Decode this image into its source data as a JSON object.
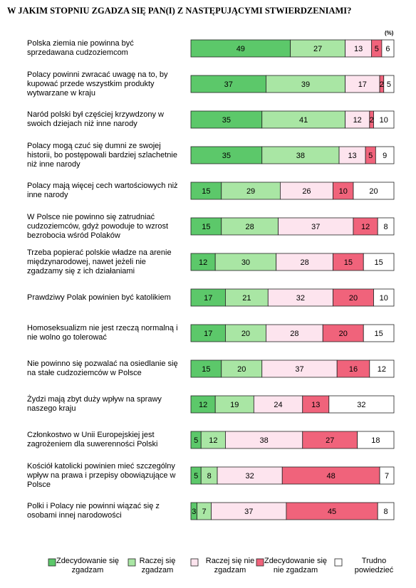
{
  "chart_data": {
    "type": "stacked-bar",
    "title": "W JAKIM STOPNIU ZGADZA SIĘ PAN(I) Z NASTĘPUJĄCYMI STWIERDZENIAMI?",
    "unit_label": "(%)",
    "categories": [
      "Polska ziemia nie powinna być sprzedawana cudzoziemcom",
      "Polacy powinni zwracać uwagę na to, by kupować przede wszystkim produkty wytwarzane w kraju",
      "Naród polski był częściej krzywdzony w swoich dziejach niż inne narody",
      "Polacy mogą czuć się dumni ze swojej historii, bo postępowali bardziej szlachetnie niż inne narody",
      "Polacy mają więcej cech wartościowych niż inne narody",
      "W Polsce nie powinno się zatrudniać cudzoziemców, gdyż powoduje to wzrost bezrobocia wśród Polaków",
      "Trzeba popierać polskie władze na arenie międzynarodowej, nawet jeżeli nie zgadzamy się z ich działaniami",
      "Prawdziwy Polak powinien być katolikiem",
      "Homoseksualizm nie jest rzeczą normalną i nie wolno go tolerować",
      "Nie powinno się pozwalać na osiedlanie się na stałe cudzoziemców w Polsce",
      "Żydzi mają zbyt duży wpływ na sprawy naszego kraju",
      "Członkostwo w Unii Europejskiej jest zagrożeniem dla suwerenności Polski",
      "Kościół katolicki powinien mieć szczególny wpływ na prawa i przepisy obowiązujące w Polsce",
      "Polki i Polacy nie powinni wiązać się z osobami innej narodowości"
    ],
    "series": [
      {
        "name": "Zdecydowanie się zgadzam",
        "color": "#5cc86a",
        "values": [
          49,
          37,
          35,
          35,
          15,
          15,
          12,
          17,
          17,
          15,
          12,
          5,
          5,
          3
        ]
      },
      {
        "name": "Raczej się zgadzam",
        "color": "#a9e6a4",
        "values": [
          27,
          39,
          41,
          38,
          29,
          28,
          30,
          21,
          20,
          20,
          19,
          12,
          8,
          7
        ]
      },
      {
        "name": "Raczej się nie zgadzam",
        "color": "#fde4ee",
        "values": [
          13,
          17,
          12,
          13,
          26,
          37,
          28,
          32,
          28,
          37,
          24,
          38,
          32,
          37
        ]
      },
      {
        "name": "Zdecydowanie się nie zgadzam",
        "color": "#f0637b",
        "values": [
          5,
          2,
          2,
          5,
          10,
          12,
          15,
          20,
          20,
          16,
          13,
          27,
          48,
          45
        ]
      },
      {
        "name": "Trudno powiedzieć",
        "color": "#ffffff",
        "values": [
          6,
          5,
          10,
          9,
          20,
          8,
          15,
          10,
          15,
          12,
          32,
          18,
          7,
          8
        ]
      }
    ]
  }
}
